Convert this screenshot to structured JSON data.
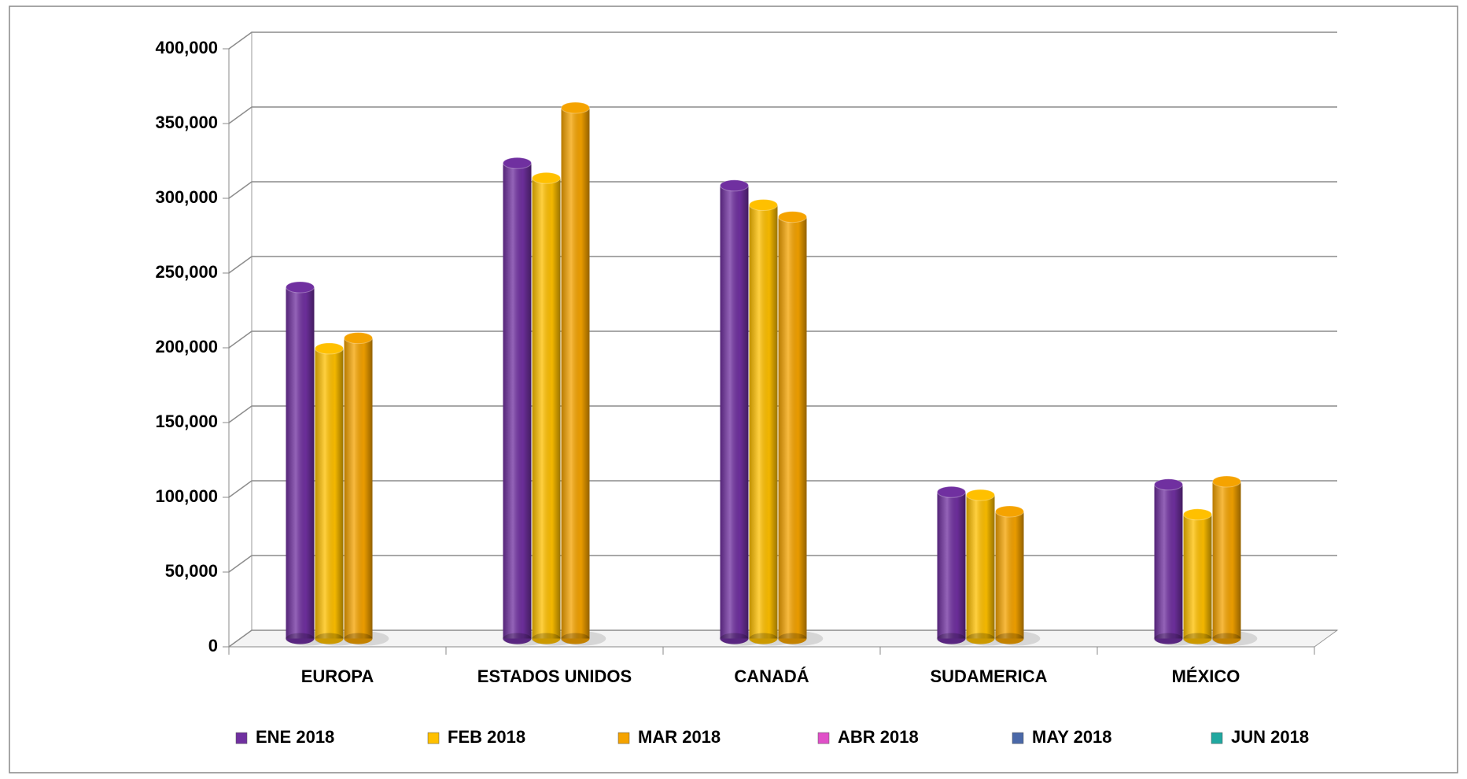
{
  "chart_data": {
    "type": "bar3d",
    "categories": [
      "EUROPA",
      "ESTADOS UNIDOS",
      "CANADÁ",
      "SUDAMERICA",
      "MÉXICO"
    ],
    "series": [
      {
        "name": "ENE 2018",
        "color": "#7030a0",
        "values": [
          235000,
          318000,
          303000,
          98000,
          103000
        ]
      },
      {
        "name": "FEB 2018",
        "color": "#ffc000",
        "values": [
          194000,
          308000,
          290000,
          96000,
          83000
        ]
      },
      {
        "name": "MAR 2018",
        "color": "#f5a300",
        "values": [
          201000,
          355000,
          282000,
          85000,
          105000
        ]
      },
      {
        "name": "ABR 2018",
        "color": "#e050c8",
        "values": [
          null,
          null,
          null,
          null,
          null
        ]
      },
      {
        "name": "MAY 2018",
        "color": "#4a68a8",
        "values": [
          null,
          null,
          null,
          null,
          null
        ]
      },
      {
        "name": "JUN 2018",
        "color": "#20a8a0",
        "values": [
          null,
          null,
          null,
          null,
          null
        ]
      }
    ],
    "ylim": [
      0,
      400000
    ],
    "yticks": [
      0,
      {
        "value": 50000,
        "label": "50,000"
      },
      {
        "value": 100000,
        "label": "100,000"
      },
      {
        "value": 150000,
        "label": "150,000"
      },
      {
        "value": 200000,
        "label": "200,000"
      },
      {
        "value": 250000,
        "label": "250,000"
      },
      {
        "value": 300000,
        "label": "300,000"
      },
      {
        "value": 350000,
        "label": "350,000"
      },
      {
        "value": 400000,
        "label": "400,000"
      }
    ],
    "grid": true
  }
}
